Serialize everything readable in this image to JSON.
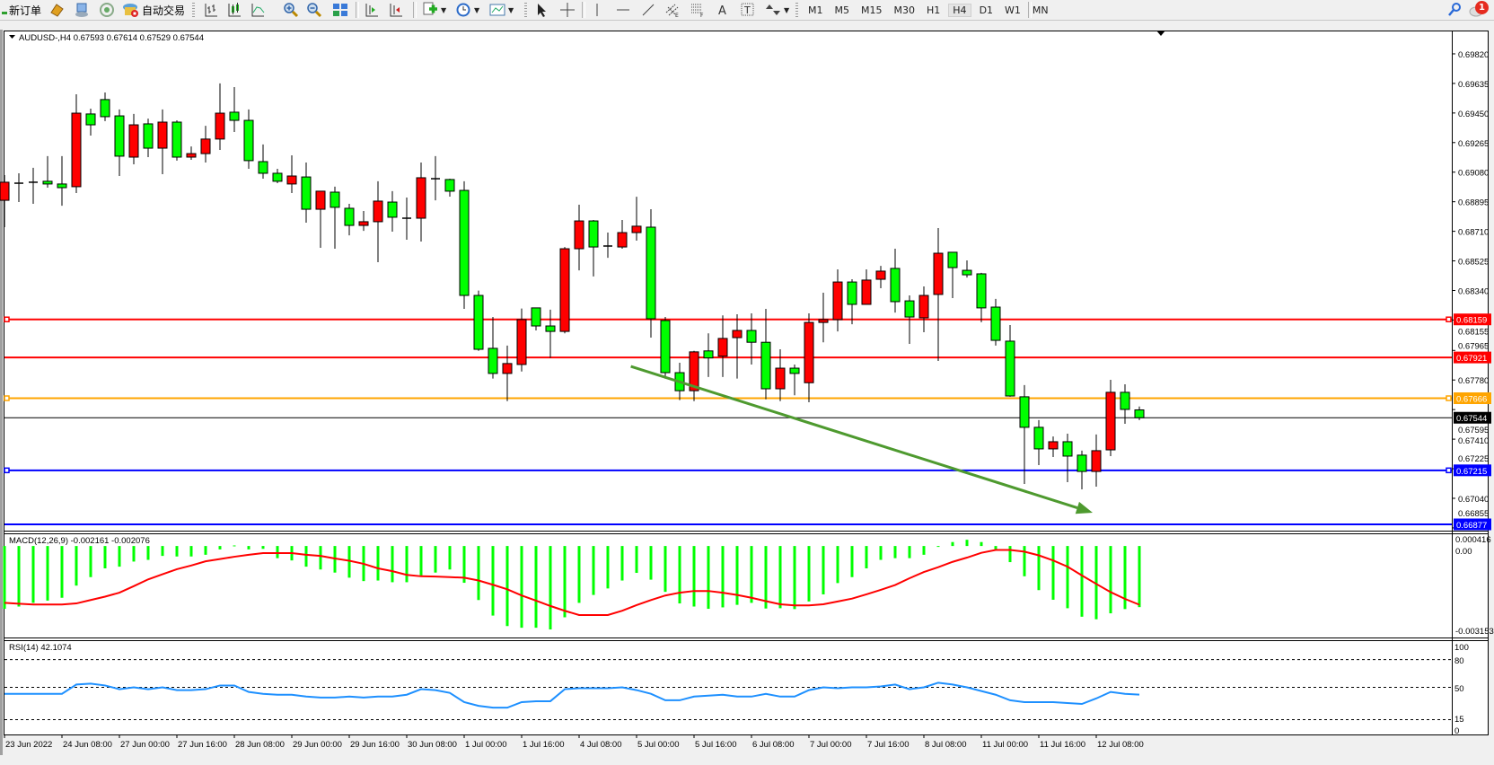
{
  "toolbar": {
    "new_order_label": "新订单",
    "auto_trading_label": "自动交易",
    "periods": [
      "M1",
      "M5",
      "M15",
      "M30",
      "H1",
      "H4",
      "D1",
      "W1",
      "MN"
    ],
    "active_period": "H4",
    "notification_count": "1",
    "icons": [
      "new-order-icon",
      "market-watch-icon",
      "terminal-icon",
      "signals-icon",
      "auto-trading-icon",
      "bar-chart-icon",
      "candlestick-icon",
      "line-chart-icon",
      "zoom-in-icon",
      "zoom-out-icon",
      "tile-windows-icon",
      "autoscroll-icon",
      "chart-shift-icon",
      "indicators-icon",
      "periods-icon",
      "templates-icon",
      "cursor-icon",
      "crosshair-icon",
      "vertical-line-icon",
      "horizontal-line-icon",
      "trendline-icon",
      "equidistant-channel-icon",
      "fibonacci-icon",
      "text-icon",
      "text-label-icon",
      "arrows-icon",
      "search-icon",
      "notification-icon"
    ]
  },
  "chart": {
    "header": "AUDUSD-,H4  0.67593 0.67614 0.67529 0.67544",
    "symbol": "AUDUSD-",
    "timeframe": "H4"
  },
  "chart_data": {
    "type": "candlestick",
    "bull_color": "#ff0000",
    "bear_color": "#00ff00",
    "price_axis": {
      "range": [
        0.66855,
        0.70005
      ],
      "ticks": [
        "0.69820",
        "0.69635",
        "0.69450",
        "0.69265",
        "0.69080",
        "0.68895",
        "0.68710",
        "0.68525",
        "0.68340",
        "0.68155",
        "0.67965",
        "0.67780",
        "0.67595",
        "0.67410",
        "0.67225",
        "0.67040",
        "0.66855"
      ]
    },
    "time_labels": [
      "23 Jun 2022",
      "24 Jun 08:00",
      "27 Jun 00:00",
      "27 Jun 16:00",
      "28 Jun 08:00",
      "29 Jun 00:00",
      "29 Jun 16:00",
      "30 Jun 08:00",
      "1 Jul 00:00",
      "1 Jul 16:00",
      "4 Jul 08:00",
      "5 Jul 00:00",
      "5 Jul 16:00",
      "6 Jul 08:00",
      "7 Jul 00:00",
      "7 Jul 16:00",
      "8 Jul 08:00",
      "11 Jul 00:00",
      "11 Jul 16:00",
      "12 Jul 08:00"
    ],
    "candles_ohlc": [
      [
        0.68904,
        0.69062,
        0.68736,
        0.69017
      ],
      [
        0.69011,
        0.69073,
        0.68893,
        0.69011
      ],
      [
        0.69017,
        0.69107,
        0.68882,
        0.69017
      ],
      [
        0.69023,
        0.6918,
        0.68983,
        0.69006
      ],
      [
        0.69006,
        0.6918,
        0.6887,
        0.68983
      ],
      [
        0.68989,
        0.69567,
        0.68949,
        0.69449
      ],
      [
        0.69444,
        0.69477,
        0.69309,
        0.69376
      ],
      [
        0.69534,
        0.69578,
        0.69399,
        0.69427
      ],
      [
        0.69432,
        0.69472,
        0.69056,
        0.6918
      ],
      [
        0.69174,
        0.69444,
        0.69129,
        0.69376
      ],
      [
        0.69382,
        0.69415,
        0.69174,
        0.6923
      ],
      [
        0.6923,
        0.69472,
        0.69067,
        0.69393
      ],
      [
        0.69393,
        0.69404,
        0.69152,
        0.69174
      ],
      [
        0.69174,
        0.69241,
        0.69157,
        0.69196
      ],
      [
        0.69196,
        0.6937,
        0.6914,
        0.69287
      ],
      [
        0.69287,
        0.69635,
        0.69219,
        0.69449
      ],
      [
        0.69455,
        0.69612,
        0.69331,
        0.69404
      ],
      [
        0.69404,
        0.69472,
        0.69101,
        0.69152
      ],
      [
        0.69146,
        0.69253,
        0.69039,
        0.69073
      ],
      [
        0.69073,
        0.69101,
        0.69011,
        0.69023
      ],
      [
        0.69006,
        0.69185,
        0.68949,
        0.69056
      ],
      [
        0.6905,
        0.6914,
        0.68764,
        0.68848
      ],
      [
        0.68848,
        0.68961,
        0.68607,
        0.68961
      ],
      [
        0.68955,
        0.68989,
        0.68601,
        0.6886
      ],
      [
        0.68854,
        0.68882,
        0.68685,
        0.68747
      ],
      [
        0.68747,
        0.68837,
        0.68713,
        0.6877
      ],
      [
        0.6877,
        0.69023,
        0.68517,
        0.68899
      ],
      [
        0.68893,
        0.68961,
        0.68708,
        0.68798
      ],
      [
        0.68792,
        0.68921,
        0.68657,
        0.68792
      ],
      [
        0.68792,
        0.6914,
        0.68646,
        0.69045
      ],
      [
        0.69039,
        0.6918,
        0.68904,
        0.69039
      ],
      [
        0.69034,
        0.69039,
        0.68927,
        0.68961
      ],
      [
        0.68966,
        0.69023,
        0.68225,
        0.68309
      ],
      [
        0.68309,
        0.68339,
        0.67962,
        0.67972
      ],
      [
        0.67978,
        0.68174,
        0.67789,
        0.67821
      ],
      [
        0.67821,
        0.67995,
        0.67648,
        0.67883
      ],
      [
        0.67877,
        0.68227,
        0.67833,
        0.68158
      ],
      [
        0.68231,
        0.68231,
        0.6809,
        0.68118
      ],
      [
        0.68118,
        0.6822,
        0.67918,
        0.68084
      ],
      [
        0.68084,
        0.68612,
        0.68072,
        0.68601
      ],
      [
        0.68601,
        0.68876,
        0.68466,
        0.68775
      ],
      [
        0.68775,
        0.68781,
        0.68428,
        0.68612
      ],
      [
        0.68618,
        0.68702,
        0.68544,
        0.68618
      ],
      [
        0.68612,
        0.68781,
        0.68601,
        0.68702
      ],
      [
        0.68702,
        0.68926,
        0.68652,
        0.68742
      ],
      [
        0.68736,
        0.68848,
        0.68045,
        0.68163
      ],
      [
        0.68152,
        0.68174,
        0.67789,
        0.67826
      ],
      [
        0.67826,
        0.67888,
        0.67654,
        0.67713
      ],
      [
        0.67713,
        0.67962,
        0.67648,
        0.67956
      ],
      [
        0.67962,
        0.68072,
        0.67799,
        0.67918
      ],
      [
        0.67929,
        0.68184,
        0.67799,
        0.6804
      ],
      [
        0.68045,
        0.68191,
        0.67789,
        0.6809
      ],
      [
        0.6809,
        0.68197,
        0.67877,
        0.68016
      ],
      [
        0.68016,
        0.68225,
        0.67659,
        0.67725
      ],
      [
        0.67725,
        0.67972,
        0.67648,
        0.67854
      ],
      [
        0.67854,
        0.67877,
        0.67684,
        0.67821
      ],
      [
        0.67763,
        0.68197,
        0.67641,
        0.6814
      ],
      [
        0.6814,
        0.68326,
        0.68016,
        0.68158
      ],
      [
        0.68158,
        0.68472,
        0.68084,
        0.68393
      ],
      [
        0.68393,
        0.6841,
        0.68129,
        0.68253
      ],
      [
        0.68253,
        0.68472,
        0.68253,
        0.68405
      ],
      [
        0.6841,
        0.68494,
        0.68354,
        0.68461
      ],
      [
        0.68478,
        0.68601,
        0.68202,
        0.6827
      ],
      [
        0.68275,
        0.68309,
        0.68006,
        0.68174
      ],
      [
        0.68169,
        0.68365,
        0.68079,
        0.68309
      ],
      [
        0.68315,
        0.6873,
        0.67899,
        0.68573
      ],
      [
        0.68579,
        0.68579,
        0.68292,
        0.68483
      ],
      [
        0.68466,
        0.68528,
        0.68421,
        0.68438
      ],
      [
        0.68444,
        0.6845,
        0.68141,
        0.68231
      ],
      [
        0.68236,
        0.68287,
        0.67995,
        0.68028
      ],
      [
        0.68023,
        0.68124,
        0.67675,
        0.6768
      ],
      [
        0.67675,
        0.67748,
        0.6713,
        0.67484
      ],
      [
        0.67484,
        0.67529,
        0.67248,
        0.67349
      ],
      [
        0.67349,
        0.67427,
        0.67298,
        0.67394
      ],
      [
        0.67394,
        0.67444,
        0.67141,
        0.67304
      ],
      [
        0.6731,
        0.67338,
        0.67096,
        0.67208
      ],
      [
        0.67208,
        0.67439,
        0.67113,
        0.67338
      ],
      [
        0.67343,
        0.67781,
        0.67304,
        0.67703
      ],
      [
        0.67703,
        0.67753,
        0.67506,
        0.67596
      ],
      [
        0.67593,
        0.67614,
        0.67529,
        0.67544
      ]
    ],
    "hlines": [
      {
        "price": "0.68159",
        "color": "#ff0000",
        "marker": true
      },
      {
        "price": "0.67921",
        "color": "#ff0000",
        "marker": false
      },
      {
        "price": "0.67666",
        "color": "#ffa500",
        "marker": true
      },
      {
        "price": "0.67215",
        "color": "#0000ff",
        "marker": true
      },
      {
        "price": "0.66877",
        "color": "#0000ff",
        "marker": false
      }
    ],
    "bid_line": {
      "price": "0.67544",
      "color": "#000000"
    },
    "trendline": {
      "color": "#4e9a2f",
      "from_bar": 44.6,
      "from_price": 0.67865,
      "to_bar": 76.75,
      "to_price": 0.6695,
      "arrow": true
    },
    "macd": {
      "label": "MACD(12,26,9) -0.002161 -0.002076",
      "axis_max": "0.000416",
      "axis_zero": "0.00",
      "axis_min": "-0.003153",
      "histogram_color": "#00ff00",
      "signal_color": "#ff0000",
      "main": [
        -0.00222,
        -0.00214,
        -0.00201,
        -0.00193,
        -0.00183,
        -0.0014,
        -0.0011,
        -0.00079,
        -0.00073,
        -0.00055,
        -0.00049,
        -0.00035,
        -0.00037,
        -0.00037,
        -0.00031,
        -0.00012,
        2e-05,
        -0.00012,
        -0.0001,
        -0.00043,
        -0.00051,
        -0.00073,
        -0.00083,
        -0.00094,
        -0.00112,
        -0.00124,
        -0.00122,
        -0.00128,
        -0.00128,
        -0.00104,
        -0.00094,
        -0.00083,
        -0.0013,
        -0.00191,
        -0.00246,
        -0.00283,
        -0.00289,
        -0.00289,
        -0.00295,
        -0.00252,
        -0.00201,
        -0.00173,
        -0.0015,
        -0.00122,
        -0.00095,
        -0.00119,
        -0.00162,
        -0.00203,
        -0.00214,
        -0.00222,
        -0.00217,
        -0.00208,
        -0.00201,
        -0.00221,
        -0.0022,
        -0.00223,
        -0.00196,
        -0.00171,
        -0.00131,
        -0.0011,
        -0.00079,
        -0.00049,
        -0.00043,
        -0.00043,
        -0.00031,
        -2e-05,
        0.00014,
        0.00022,
        0.00014,
        -0.00012,
        -0.00057,
        -0.00107,
        -0.00156,
        -0.0019,
        -0.0022,
        -0.0025,
        -0.00259,
        -0.00238,
        -0.00223,
        -0.002161
      ],
      "signal": [
        -0.00201,
        -0.00204,
        -0.00207,
        -0.00207,
        -0.00207,
        -0.00203,
        -0.00191,
        -0.00179,
        -0.00165,
        -0.00142,
        -0.00118,
        -0.001,
        -0.00082,
        -0.00069,
        -0.00054,
        -0.00046,
        -0.00038,
        -0.00031,
        -0.00025,
        -0.00025,
        -0.00025,
        -0.00031,
        -0.00035,
        -0.00044,
        -0.00052,
        -0.00063,
        -0.00079,
        -0.00089,
        -0.00102,
        -0.00107,
        -0.00108,
        -0.0011,
        -0.00112,
        -0.00122,
        -0.00137,
        -0.00153,
        -0.00175,
        -0.00193,
        -0.00212,
        -0.00229,
        -0.00244,
        -0.00244,
        -0.00244,
        -0.00229,
        -0.00209,
        -0.00191,
        -0.00175,
        -0.00165,
        -0.00159,
        -0.00159,
        -0.00165,
        -0.00173,
        -0.00183,
        -0.00195,
        -0.00206,
        -0.0021,
        -0.0021,
        -0.00206,
        -0.00196,
        -0.00186,
        -0.00171,
        -0.00155,
        -0.00138,
        -0.00114,
        -0.00092,
        -0.00075,
        -0.00056,
        -0.00041,
        -0.00024,
        -0.00014,
        -0.00014,
        -0.0002,
        -0.00033,
        -0.00051,
        -0.00073,
        -0.00104,
        -0.00134,
        -0.00163,
        -0.00187,
        -0.002076
      ]
    },
    "rsi": {
      "label": "RSI(14) 42.1074",
      "color": "#1e90ff",
      "axis_labels": [
        "100",
        "80",
        "50",
        "15",
        "0"
      ],
      "levels": [
        80,
        50,
        15
      ],
      "values": [
        43,
        43,
        43,
        43,
        43,
        53,
        54,
        52,
        48,
        50,
        48,
        50,
        47,
        47,
        48,
        52,
        52,
        45,
        43,
        42,
        42,
        40,
        39,
        39,
        40,
        39,
        40,
        40,
        42,
        48,
        47,
        44,
        34,
        30,
        28,
        28,
        34,
        35,
        35,
        48,
        49,
        49,
        49,
        50,
        47,
        43,
        36,
        36,
        40,
        41,
        42,
        40,
        40,
        43,
        40,
        40,
        47,
        50,
        49,
        50,
        50,
        51,
        53,
        48,
        50,
        55,
        53,
        50,
        46,
        42,
        36,
        34,
        34,
        34,
        33,
        32,
        38,
        45,
        43,
        42.1074
      ]
    }
  }
}
